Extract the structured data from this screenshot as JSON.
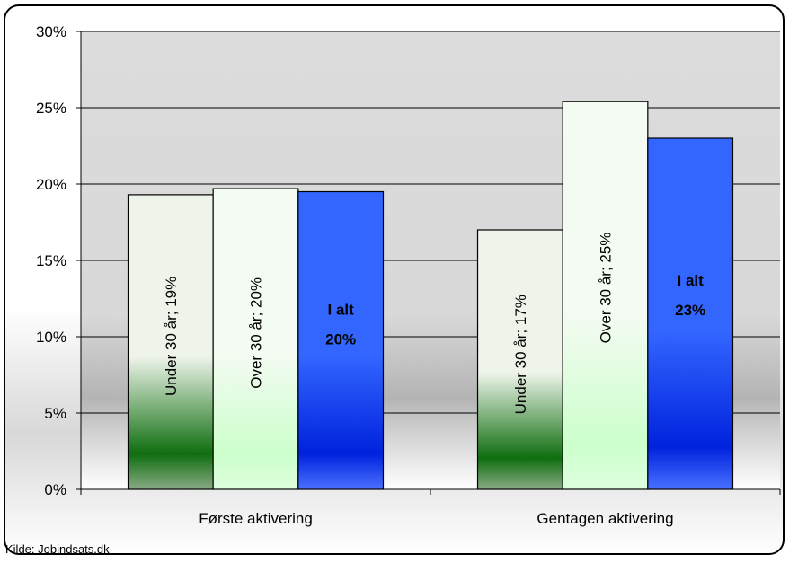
{
  "chart_data": {
    "type": "bar",
    "categories": [
      "Første aktivering",
      "Gentagen aktivering"
    ],
    "series": [
      {
        "name": "Under 30 år",
        "values": [
          19.3,
          17.0
        ],
        "labels": [
          "Under 30 år; 19%",
          "Under 30 år; 17%"
        ],
        "color_top": "#eef4ea",
        "color_band": "#0f6e0f",
        "color_bottom": "#8aaa86",
        "label_color": "#000000"
      },
      {
        "name": "Over 30 år",
        "values": [
          19.7,
          25.4
        ],
        "labels": [
          "Over 30 år; 20%",
          "Over 30 år; 25%"
        ],
        "color_top": "#f4fbf2",
        "color_band": "#ccffcc",
        "color_bottom": "#ddffdd",
        "label_color": "#000000"
      },
      {
        "name": "I alt",
        "values": [
          19.5,
          23.0
        ],
        "labels": [
          "I alt\n20%",
          "I alt\n23%"
        ],
        "color_top": "#3366ff",
        "color_band": "#0022dd",
        "color_bottom": "#4a70ff",
        "label_color": "#000000"
      }
    ],
    "yticks": [
      "0%",
      "5%",
      "10%",
      "15%",
      "20%",
      "25%",
      "30%"
    ],
    "ylim": [
      0,
      30
    ],
    "grid": true,
    "plot_background_top": "#dcdcdc",
    "plot_background_bottom": "#ffffff"
  },
  "source": "Kilde: Jobindsats.dk"
}
